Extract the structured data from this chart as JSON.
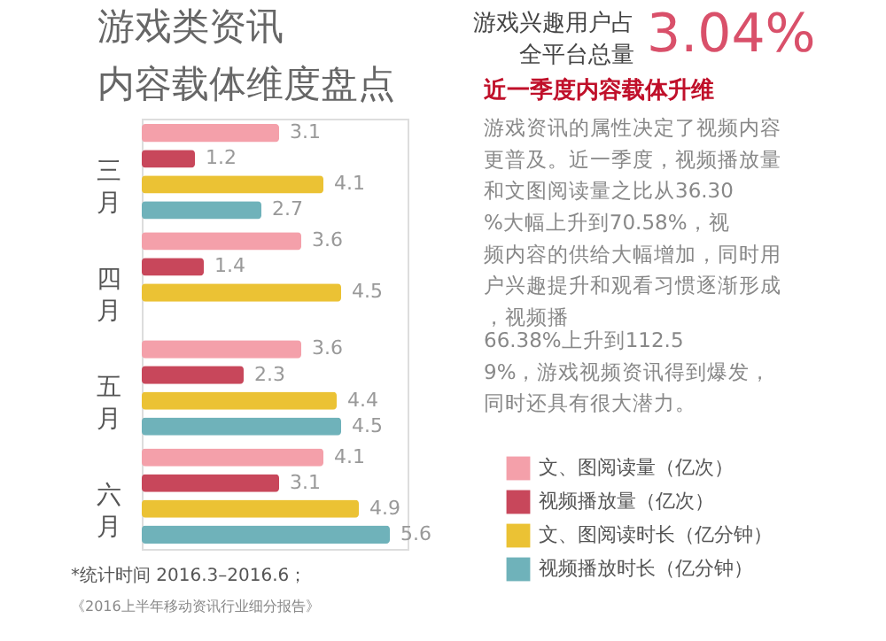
{
  "chart_data": {
    "type": "bar",
    "orientation": "horizontal",
    "title": "游戏类资讯内容载体维度盘点",
    "categories": [
      "三月",
      "四月",
      "五月",
      "六月"
    ],
    "series": [
      {
        "name": "文、图阅读量（亿次）",
        "color": "#f4a0aa",
        "values": [
          3.1,
          3.6,
          3.6,
          4.1
        ]
      },
      {
        "name": "视频播放量（亿次）",
        "color": "#c8475b",
        "values": [
          1.2,
          1.4,
          2.3,
          3.1
        ]
      },
      {
        "name": "文、图阅读时长（亿分钟）",
        "color": "#ebc234",
        "values": [
          4.1,
          4.5,
          4.4,
          4.9
        ]
      },
      {
        "name": "视频播放时长（亿分钟）",
        "color": "#6fb2ba",
        "values": [
          2.7,
          null,
          4.5,
          5.6
        ]
      }
    ],
    "data_labels": true,
    "legend": "right",
    "annotations": [
      "游戏兴趣用户占",
      "全平台总量",
      "3.04%",
      "近一季度内容载体升维",
      "游戏资讯的属性决定了视频内容更普及。近一季度，视频播放量和文图阅读量之比从36.30%大幅上升到70.58%，视频内容的供给大幅增加，同时用户兴趣提升和观看习惯逐渐形成，视频播",
      "66.38%上升到112.59%，游戏视频资讯得到爆发，同时还具有很大潜力。",
      "*统计时间 2016.3–2016.6；",
      "《2016上半年移动资讯行业细分报告》"
    ]
  }
}
